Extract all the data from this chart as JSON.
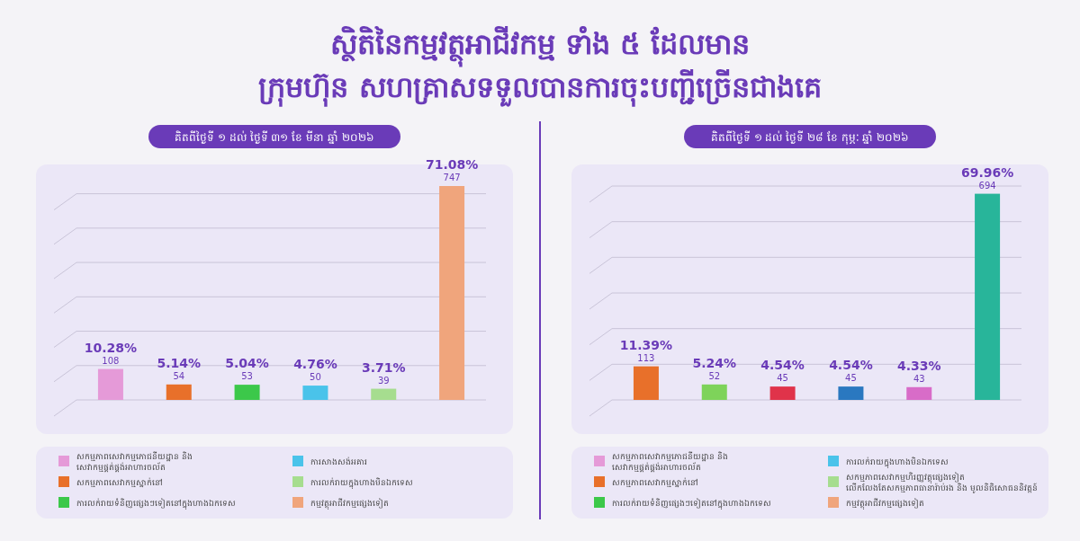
{
  "chart_data": [
    {
      "type": "bar",
      "title": "ស្ថិតិនៃកម្មវត្ថុអាជីវកម្ម ទាំង ៥ ដែលមាន\nក្រុមហ៊ុន សហគ្រាសទទួលបានការចុះបញ្ជីច្រើនជាងគេ",
      "subtitle": "គិតពីថ្ងៃទី ១ ដល់ ថ្ងៃទី ៣១ ខែ មីនា ឆ្នាំ ២០២៦",
      "categories": [
        null,
        null,
        null,
        null,
        null,
        null
      ],
      "values": [
        108,
        54,
        53,
        50,
        39,
        747
      ],
      "colors": [
        "#e59ad8",
        "#e8702a",
        "#3cc84a",
        "#4ac3ea",
        "#a6dd8f",
        "#f0a57c"
      ],
      "value_labels": [
        "10.28%\n108",
        "5.14%\n54",
        "5.04%\n53",
        "4.76%\n50",
        "3.71%\n39",
        "71.08%\n747"
      ],
      "yticks": [
        {
          "value": 0,
          "label": null
        },
        {
          "value": 120,
          "label": null
        },
        {
          "value": 240,
          "label": null
        },
        {
          "value": 360,
          "label": null
        },
        {
          "value": 480,
          "label": null
        },
        {
          "value": 600,
          "label": null
        },
        {
          "value": 720,
          "label": null
        }
      ],
      "grid": "y",
      "annotations": [
        "សកម្មភាពសេវាកម្មភោជនីយដ្ឋាន និង សេវាកម្មផ្គត់ផ្គង់អាហារចល័ត",
        "សកម្មភាពសេវាកម្មស្នាក់នៅ",
        "ការលក់រាយទំនិញផ្សេងៗទៀតនៅក្នុងហាងឯកទេស",
        "ការសាងសង់អគារ",
        "ការលក់រាយក្នុងហាងមិនឯកទេស",
        "កម្មវត្ថុអាជីវកម្មផ្សេងទៀត"
      ]
    },
    {
      "type": "bar",
      "subtitle": "គិតពីថ្ងៃទី ១ ដល់ ថ្ងៃទី ២៨ ខែ កុម្ភៈ ឆ្នាំ ២០២៦",
      "categories": [
        null,
        null,
        null,
        null,
        null,
        null
      ],
      "values": [
        113,
        52,
        45,
        45,
        43,
        694
      ],
      "colors": [
        "#e8702a",
        "#7ed35a",
        "#e0334a",
        "#2a78c0",
        "#d86cc8",
        "#28b59a"
      ],
      "value_labels": [
        "11.39%\n113",
        "5.24%\n52",
        "4.54%\n45",
        "4.54%\n45",
        "4.33%\n43",
        "69.96%\n694"
      ],
      "yticks": [
        {
          "value": 0,
          "label": null
        },
        {
          "value": 120,
          "label": null
        },
        {
          "value": 240,
          "label": null
        },
        {
          "value": 360,
          "label": null
        },
        {
          "value": 480,
          "label": null
        },
        {
          "value": 600,
          "label": null
        },
        {
          "value": 720,
          "label": null
        }
      ],
      "grid": "y",
      "annotations": [
        "សកម្មភាពសេវាកម្មភោជនីយដ្ឋាន និង សេវាកម្មផ្គត់ផ្គង់អាហារចល័ត",
        "សកម្មភាពសេវាកម្មស្នាក់នៅ",
        "ការលក់រាយទំនិញផ្សេងៗទៀតនៅក្នុងហាងឯកទេស",
        "ការលក់រាយក្នុងហាងមិនឯកទេស",
        "សកម្មភាពសេវាកម្មហិរញ្ញវត្ថុផ្សេងទៀត លើកលែងតែសកម្មភាពធានារ៉ាប់រង និង មូលនិធិសោធននិវត្តន៍",
        "កម្មវត្ថុអាជីវកម្មផ្សេងទៀត"
      ]
    }
  ]
}
